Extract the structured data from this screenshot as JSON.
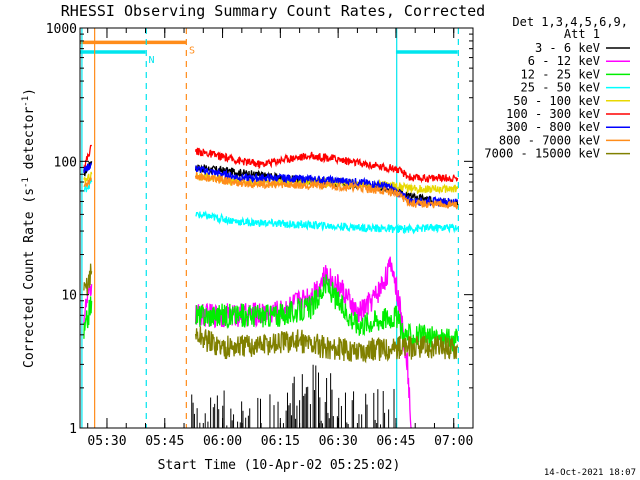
{
  "chart_data": {
    "type": "line",
    "title": "RHESSI Observing Summary Count Rates, Corrected",
    "xlabel": "Start Time (10-Apr-02 05:25:02)",
    "ylabel_main": "Corrected Count Rate (s",
    "ylabel_sup1": "-1",
    "ylabel_mid": " detector",
    "ylabel_sup2": "-1",
    "ylabel_end": ")",
    "y_scale": "log",
    "ylim": [
      1,
      1000
    ],
    "xlim": [
      -2,
      100
    ],
    "x_unit": "minutes after 05:25:02",
    "y_ticks": [
      {
        "v": 1,
        "label": "1"
      },
      {
        "v": 10,
        "label": "10"
      },
      {
        "v": 100,
        "label": "100"
      },
      {
        "v": 1000,
        "label": "1000"
      }
    ],
    "x_ticks": [
      {
        "t": 5,
        "label": "05:30"
      },
      {
        "t": 20,
        "label": "05:45"
      },
      {
        "t": 35,
        "label": "06:00"
      },
      {
        "t": 50,
        "label": "06:15"
      },
      {
        "t": 65,
        "label": "06:30"
      },
      {
        "t": 80,
        "label": "06:45"
      },
      {
        "t": 95,
        "label": "07:00"
      }
    ],
    "legend_header": [
      "Det 1,3,4,5,6,9,",
      "Att 1"
    ],
    "footer_date": "14-Oct-2021 18:07",
    "flags": [
      {
        "name": "S",
        "color": "#ff8c1a",
        "y": 780,
        "t0": -2,
        "t1": 25.5,
        "label": "S"
      },
      {
        "name": "N",
        "color": "#00e5ee",
        "y": 660,
        "t0": -2,
        "t1": 15,
        "label": "N"
      },
      {
        "name": "N2",
        "color": "#00e5ee",
        "y": 660,
        "t0": 80,
        "t1": 96,
        "label": ""
      }
    ],
    "vlines": [
      {
        "t": -1.5,
        "color": "#00e5ee",
        "style": "solid"
      },
      {
        "t": 1.8,
        "color": "#ff8c1a",
        "style": "solid"
      },
      {
        "t": 15.2,
        "color": "#00e5ee",
        "style": "dash"
      },
      {
        "t": 25.6,
        "color": "#ff8c1a",
        "style": "dash"
      },
      {
        "t": 80.2,
        "color": "#00e5ee",
        "style": "solid"
      },
      {
        "t": 96.2,
        "color": "#00e5ee",
        "style": "dash"
      }
    ],
    "series": [
      {
        "name": "3 - 6 keV",
        "color": "#000000",
        "segments": [
          [
            [
              -1,
              80
            ],
            [
              1,
              100
            ]
          ],
          [
            [
              28,
              90
            ],
            [
              40,
              82
            ],
            [
              50,
              75
            ],
            [
              60,
              70
            ],
            [
              70,
              68
            ],
            [
              78,
              62
            ],
            [
              83,
              55
            ],
            [
              96,
              47
            ]
          ]
        ]
      },
      {
        "name": "6 - 12 keV",
        "color": "#ff00ff",
        "segments": [
          [
            [
              -1,
              7
            ],
            [
              1,
              12
            ]
          ],
          [
            [
              28,
              7
            ],
            [
              40,
              7
            ],
            [
              50,
              7.5
            ],
            [
              58,
              10
            ],
            [
              62,
              14
            ],
            [
              66,
              11
            ],
            [
              70,
              7
            ],
            [
              75,
              10
            ],
            [
              79,
              17
            ],
            [
              81,
              8
            ],
            [
              83,
              3
            ],
            [
              84,
              1
            ]
          ]
        ]
      },
      {
        "name": "12 - 25 keV",
        "color": "#00ee00",
        "segments": [
          [
            [
              -1,
              5
            ],
            [
              1,
              9
            ]
          ],
          [
            [
              28,
              7
            ],
            [
              40,
              7
            ],
            [
              50,
              7
            ],
            [
              58,
              8
            ],
            [
              62,
              12
            ],
            [
              66,
              8
            ],
            [
              70,
              6
            ],
            [
              80,
              7
            ],
            [
              82,
              5
            ],
            [
              96,
              4.5
            ]
          ]
        ]
      },
      {
        "name": "25 - 50 keV",
        "color": "#00ffff",
        "segments": [
          [
            [
              -1,
              60
            ],
            [
              1,
              70
            ]
          ],
          [
            [
              28,
              40
            ],
            [
              40,
              35
            ],
            [
              50,
              34
            ],
            [
              60,
              33
            ],
            [
              70,
              32
            ],
            [
              80,
              31
            ],
            [
              96,
              32
            ]
          ]
        ]
      },
      {
        "name": "50 - 100 keV",
        "color": "#e8d800",
        "segments": [
          [
            [
              -1,
              70
            ],
            [
              1,
              80
            ]
          ],
          [
            [
              28,
              78
            ],
            [
              40,
              70
            ],
            [
              50,
              70
            ],
            [
              60,
              70
            ],
            [
              70,
              68
            ],
            [
              80,
              66
            ],
            [
              84,
              62
            ],
            [
              96,
              62
            ]
          ]
        ]
      },
      {
        "name": "100 - 300 keV",
        "color": "#ff0000",
        "segments": [
          [
            [
              -1,
              90
            ],
            [
              1,
              130
            ]
          ],
          [
            [
              28,
              120
            ],
            [
              40,
              100
            ],
            [
              45,
              95
            ],
            [
              52,
              105
            ],
            [
              58,
              110
            ],
            [
              64,
              105
            ],
            [
              72,
              95
            ],
            [
              80,
              88
            ],
            [
              84,
              75
            ],
            [
              96,
              75
            ]
          ]
        ]
      },
      {
        "name": "300 - 800 keV",
        "color": "#0000ff",
        "segments": [
          [
            [
              -1,
              85
            ],
            [
              1,
              95
            ]
          ],
          [
            [
              28,
              88
            ],
            [
              40,
              75
            ],
            [
              50,
              75
            ],
            [
              60,
              73
            ],
            [
              70,
              70
            ],
            [
              78,
              65
            ],
            [
              84,
              50
            ],
            [
              96,
              50
            ]
          ]
        ]
      },
      {
        "name": "800 - 7000 keV",
        "color": "#ff8c1a",
        "segments": [
          [
            [
              -1,
              65
            ],
            [
              1,
              75
            ]
          ],
          [
            [
              28,
              78
            ],
            [
              40,
              68
            ],
            [
              50,
              67
            ],
            [
              60,
              66
            ],
            [
              70,
              64
            ],
            [
              80,
              58
            ],
            [
              84,
              48
            ],
            [
              96,
              47
            ]
          ]
        ]
      },
      {
        "name": "7000 - 15000 keV",
        "color": "#808000",
        "segments": [
          [
            [
              -1,
              10
            ],
            [
              1,
              15
            ]
          ],
          [
            [
              28,
              5
            ],
            [
              35,
              4
            ],
            [
              45,
              4.2
            ],
            [
              55,
              4.5
            ],
            [
              62,
              4
            ],
            [
              70,
              3.8
            ],
            [
              80,
              4
            ],
            [
              90,
              4
            ],
            [
              96,
              4
            ]
          ]
        ]
      }
    ]
  }
}
